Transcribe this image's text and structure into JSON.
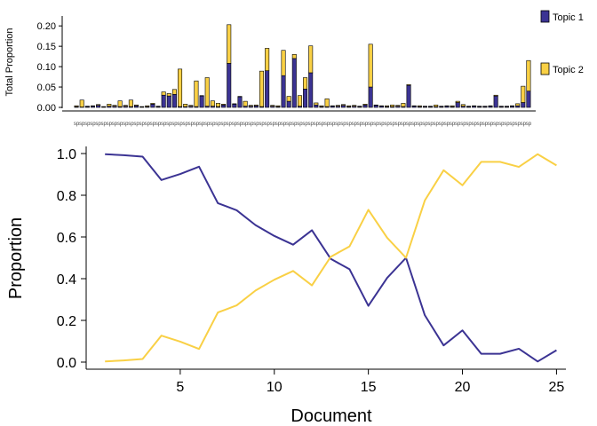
{
  "colors": {
    "topic1": "#3b3393",
    "topic2": "#f9d045",
    "axis": "#000000",
    "bar_stroke": "#000000"
  },
  "chart_data": [
    {
      "type": "bar",
      "stacked": true,
      "ylabel": "Total Proportion",
      "ylim": [
        0,
        0.22
      ],
      "yticks": [
        0.0,
        0.05,
        0.1,
        0.15,
        0.2
      ],
      "ytick_labels": [
        "0.00",
        "0.05",
        "0.10",
        "0.15",
        "0.20"
      ],
      "x_ticklabels_note": "sp",
      "legend": {
        "position": "right",
        "entries": [
          "Topic 1",
          "Topic 2"
        ]
      },
      "bars": [
        {
          "t1": 0.002,
          "t2": 0.002
        },
        {
          "t1": 0.001,
          "t2": 0.017
        },
        {
          "t1": 0.002,
          "t2": 0.001
        },
        {
          "t1": 0.003,
          "t2": 0.001
        },
        {
          "t1": 0.005,
          "t2": 0.002
        },
        {
          "t1": 0.001,
          "t2": 0.001
        },
        {
          "t1": 0.003,
          "t2": 0.005
        },
        {
          "t1": 0.003,
          "t2": 0.002
        },
        {
          "t1": 0.002,
          "t2": 0.014
        },
        {
          "t1": 0.003,
          "t2": 0.002
        },
        {
          "t1": 0.002,
          "t2": 0.016
        },
        {
          "t1": 0.004,
          "t2": 0.002
        },
        {
          "t1": 0.001,
          "t2": 0.001
        },
        {
          "t1": 0.002,
          "t2": 0.002
        },
        {
          "t1": 0.008,
          "t2": 0.002
        },
        {
          "t1": 0.002,
          "t2": 0.001
        },
        {
          "t1": 0.03,
          "t2": 0.008
        },
        {
          "t1": 0.028,
          "t2": 0.006
        },
        {
          "t1": 0.032,
          "t2": 0.012
        },
        {
          "t1": 0.002,
          "t2": 0.092
        },
        {
          "t1": 0.002,
          "t2": 0.006
        },
        {
          "t1": 0.003,
          "t2": 0.002
        },
        {
          "t1": 0.002,
          "t2": 0.063
        },
        {
          "t1": 0.028,
          "t2": 0.001
        },
        {
          "t1": 0.003,
          "t2": 0.07
        },
        {
          "t1": 0.003,
          "t2": 0.013
        },
        {
          "t1": 0.002,
          "t2": 0.008
        },
        {
          "t1": 0.006,
          "t2": 0.002
        },
        {
          "t1": 0.108,
          "t2": 0.095
        },
        {
          "t1": 0.008,
          "t2": 0.001
        },
        {
          "t1": 0.026,
          "t2": 0.001
        },
        {
          "t1": 0.003,
          "t2": 0.012
        },
        {
          "t1": 0.003,
          "t2": 0.002
        },
        {
          "t1": 0.004,
          "t2": 0.002
        },
        {
          "t1": 0.002,
          "t2": 0.087
        },
        {
          "t1": 0.09,
          "t2": 0.055
        },
        {
          "t1": 0.003,
          "t2": 0.002
        },
        {
          "t1": 0.002,
          "t2": 0.002
        },
        {
          "t1": 0.078,
          "t2": 0.062
        },
        {
          "t1": 0.015,
          "t2": 0.012
        },
        {
          "t1": 0.12,
          "t2": 0.01
        },
        {
          "t1": 0.003,
          "t2": 0.026
        },
        {
          "t1": 0.045,
          "t2": 0.028
        },
        {
          "t1": 0.085,
          "t2": 0.066
        },
        {
          "t1": 0.006,
          "t2": 0.005
        },
        {
          "t1": 0.002,
          "t2": 0.002
        },
        {
          "t1": 0.002,
          "t2": 0.019
        },
        {
          "t1": 0.003,
          "t2": 0.001
        },
        {
          "t1": 0.003,
          "t2": 0.002
        },
        {
          "t1": 0.005,
          "t2": 0.002
        },
        {
          "t1": 0.002,
          "t2": 0.002
        },
        {
          "t1": 0.003,
          "t2": 0.002
        },
        {
          "t1": 0.002,
          "t2": 0.001
        },
        {
          "t1": 0.006,
          "t2": 0.002
        },
        {
          "t1": 0.05,
          "t2": 0.105
        },
        {
          "t1": 0.005,
          "t2": 0.001
        },
        {
          "t1": 0.003,
          "t2": 0.001
        },
        {
          "t1": 0.002,
          "t2": 0.002
        },
        {
          "t1": 0.002,
          "t2": 0.004
        },
        {
          "t1": 0.003,
          "t2": 0.002
        },
        {
          "t1": 0.002,
          "t2": 0.008
        },
        {
          "t1": 0.054,
          "t2": 0.002
        },
        {
          "t1": 0.003,
          "t2": 0.001
        },
        {
          "t1": 0.002,
          "t2": 0.002
        },
        {
          "t1": 0.002,
          "t2": 0.001
        },
        {
          "t1": 0.002,
          "t2": 0.001
        },
        {
          "t1": 0.002,
          "t2": 0.004
        },
        {
          "t1": 0.002,
          "t2": 0.001
        },
        {
          "t1": 0.003,
          "t2": 0.001
        },
        {
          "t1": 0.002,
          "t2": 0.002
        },
        {
          "t1": 0.012,
          "t2": 0.003
        },
        {
          "t1": 0.003,
          "t2": 0.004
        },
        {
          "t1": 0.002,
          "t2": 0.001
        },
        {
          "t1": 0.003,
          "t2": 0.001
        },
        {
          "t1": 0.002,
          "t2": 0.001
        },
        {
          "t1": 0.002,
          "t2": 0.001
        },
        {
          "t1": 0.003,
          "t2": 0.001
        },
        {
          "t1": 0.028,
          "t2": 0.002
        },
        {
          "t1": 0.002,
          "t2": 0.001
        },
        {
          "t1": 0.002,
          "t2": 0.001
        },
        {
          "t1": 0.003,
          "t2": 0.001
        },
        {
          "t1": 0.004,
          "t2": 0.005
        },
        {
          "t1": 0.012,
          "t2": 0.04
        },
        {
          "t1": 0.04,
          "t2": 0.075
        }
      ]
    },
    {
      "type": "line",
      "xlabel": "Document",
      "ylabel": "Proportion",
      "xlim": [
        0,
        25.5
      ],
      "ylim": [
        -0.04,
        1.04
      ],
      "xticks": [
        5,
        10,
        15,
        20,
        25
      ],
      "yticks": [
        0.0,
        0.2,
        0.4,
        0.6,
        0.8,
        1.0
      ],
      "ytick_labels": [
        "0.0",
        "0.2",
        "0.4",
        "0.6",
        "0.8",
        "1.0"
      ],
      "x": [
        1,
        2,
        3,
        4,
        5,
        6,
        7,
        8,
        9,
        10,
        11,
        12,
        13,
        14,
        15,
        16,
        17,
        18,
        19,
        20,
        21,
        22,
        23,
        24,
        25
      ],
      "series": [
        {
          "key": "topic1",
          "values": [
            0.997,
            0.992,
            0.985,
            0.873,
            0.902,
            0.937,
            0.762,
            0.728,
            0.657,
            0.605,
            0.563,
            0.632,
            0.495,
            0.445,
            0.27,
            0.404,
            0.5,
            0.225,
            0.08,
            0.152,
            0.04,
            0.04,
            0.064,
            0.003,
            0.057
          ]
        },
        {
          "key": "topic2",
          "values": [
            0.003,
            0.008,
            0.015,
            0.127,
            0.098,
            0.063,
            0.238,
            0.272,
            0.343,
            0.395,
            0.437,
            0.368,
            0.505,
            0.555,
            0.73,
            0.596,
            0.5,
            0.775,
            0.92,
            0.848,
            0.96,
            0.96,
            0.936,
            0.997,
            0.943
          ]
        }
      ]
    }
  ]
}
